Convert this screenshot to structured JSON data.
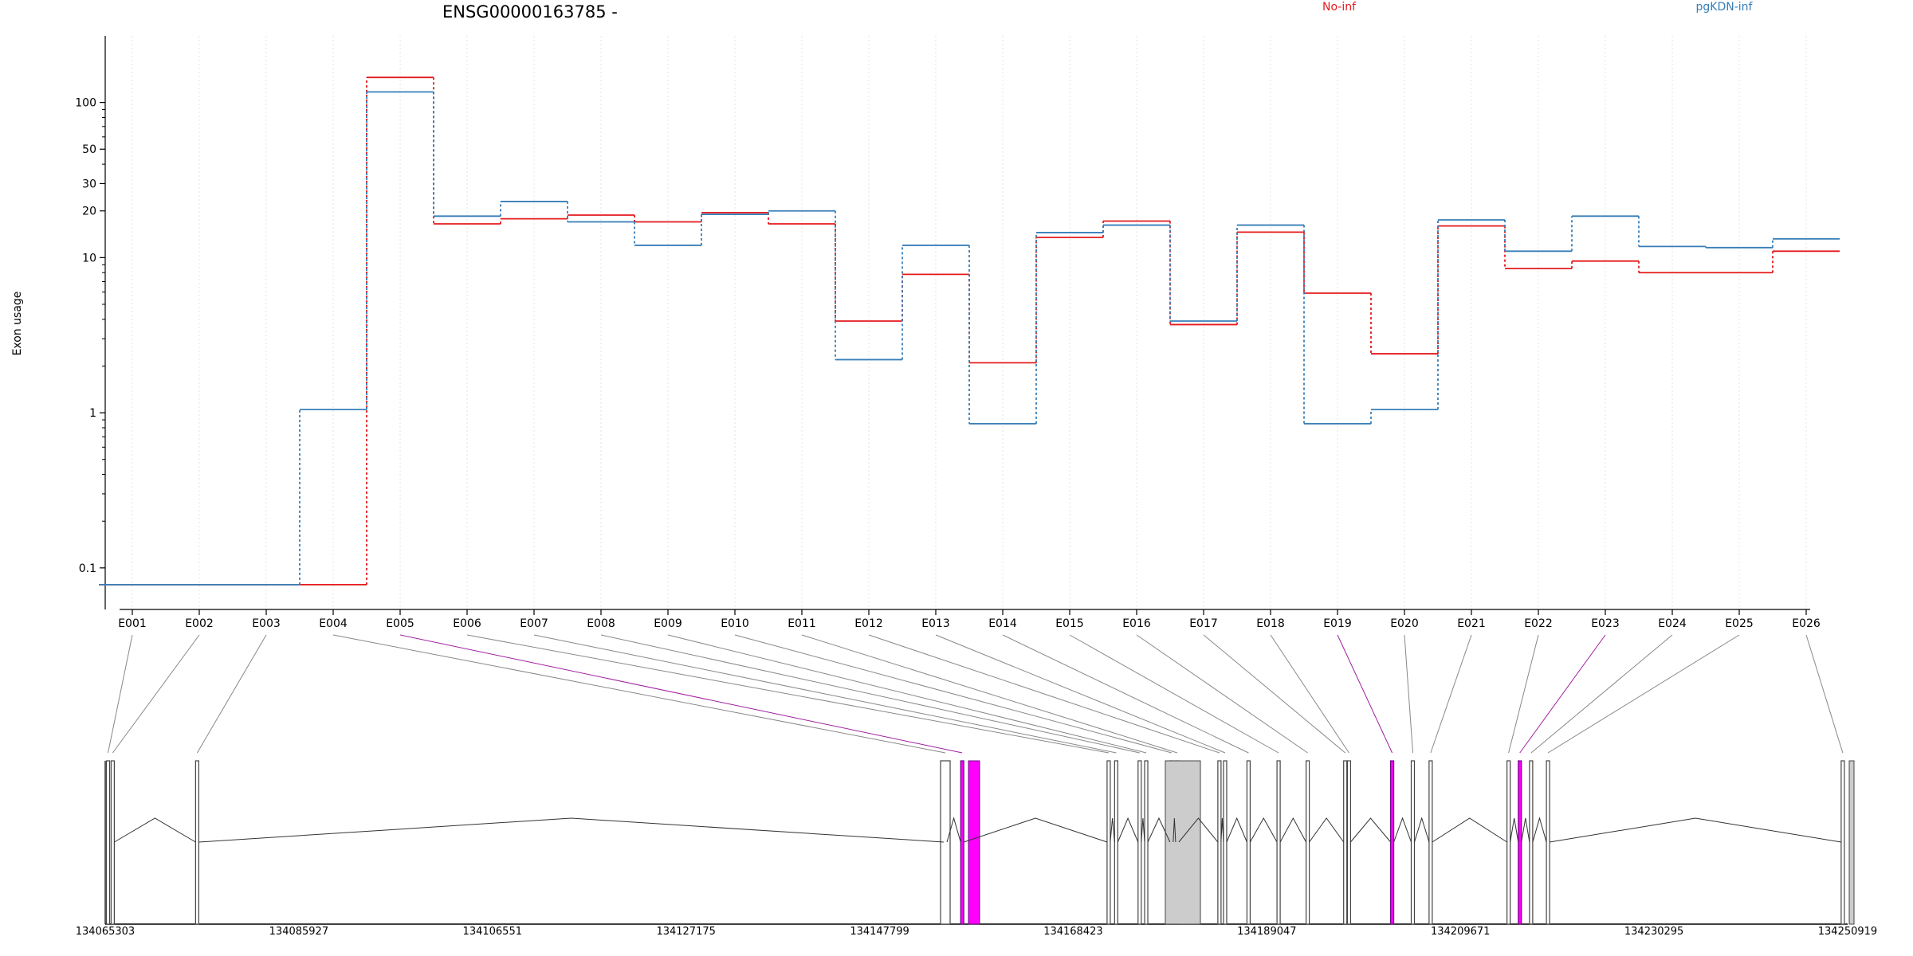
{
  "chart_data": {
    "type": "line",
    "title": "ENSG00000163785 -",
    "ylabel": "Exon usage",
    "xlabel": "",
    "y_scale": "log",
    "ylim": [
      0.07,
      200
    ],
    "y_ticks": [
      0.1,
      1,
      10,
      20,
      30,
      50,
      100
    ],
    "y_tick_labels": [
      "0.1",
      "1",
      "10",
      "20",
      "30",
      "50",
      "100"
    ],
    "grid": "vertical dotted lines at exon centers",
    "legend_placement": "top",
    "categories": [
      "E001",
      "E002",
      "E003",
      "E004",
      "E005",
      "E006",
      "E007",
      "E008",
      "E009",
      "E010",
      "E011",
      "E012",
      "E013",
      "E014",
      "E015",
      "E016",
      "E017",
      "E018",
      "E019",
      "E020",
      "E021",
      "E022",
      "E023",
      "E024",
      "E025",
      "E026"
    ],
    "series": [
      {
        "name": "No-inf",
        "color": "#e41a1c",
        "values": [
          0.078,
          0.078,
          0.078,
          0.078,
          145,
          16.5,
          17.8,
          18.8,
          17.0,
          19.5,
          16.5,
          3.9,
          7.8,
          2.1,
          13.5,
          17.2,
          3.7,
          14.6,
          5.9,
          2.4,
          16.0,
          8.5,
          9.5,
          8.0,
          8.0,
          11.0
        ]
      },
      {
        "name": "pgKDN-inf",
        "color": "#377eb8",
        "values": [
          0.078,
          0.078,
          0.078,
          1.05,
          117,
          18.5,
          23.0,
          17.0,
          12.0,
          19.0,
          20.0,
          2.2,
          12.0,
          0.85,
          14.5,
          16.2,
          3.9,
          16.2,
          0.85,
          1.05,
          17.5,
          11.0,
          18.5,
          11.8,
          11.6,
          13.2
        ]
      }
    ],
    "gene_model": {
      "start_label": "134065303",
      "end_label": "134250919",
      "start": 134065303,
      "end": 134250919,
      "coord_labels": [
        "134065303",
        "134085927",
        "134106551",
        "134127175",
        "134147799",
        "134168423",
        "134189047",
        "134209671",
        "134230295",
        "134250919"
      ],
      "exon_genomic_positions": [
        134065600,
        134066100,
        134075100,
        134154800,
        134156600,
        134172200,
        134173000,
        134175500,
        134176200,
        134178900,
        134179500,
        134184000,
        134184600,
        134187100,
        134190300,
        134193400,
        134197400,
        134197800,
        134202400,
        134204600,
        134206500,
        134214800,
        134216000,
        134217200,
        134219000,
        134250400
      ],
      "highlight_exons": [
        "E005",
        "E019",
        "E023"
      ],
      "highlight_color": "#ff00ff",
      "exon_fill_color": "#cccccc"
    }
  }
}
